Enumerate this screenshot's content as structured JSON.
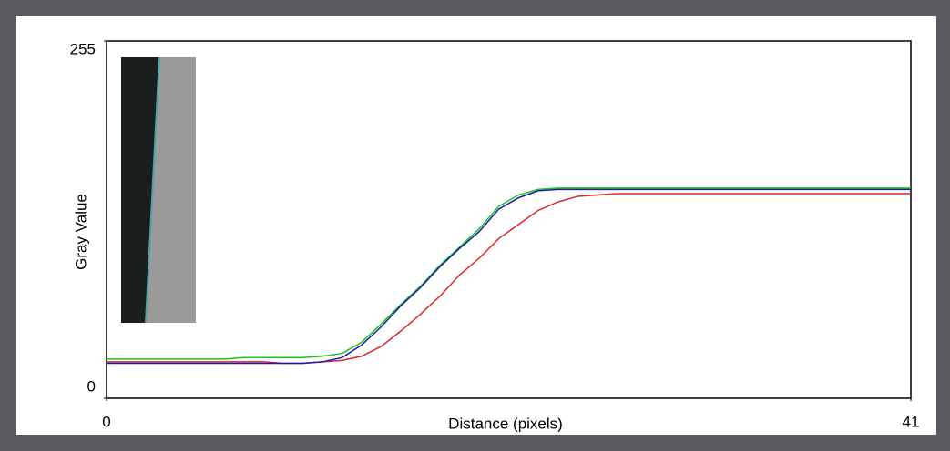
{
  "chart_data": {
    "type": "line",
    "x_label": "Distance (pixels)",
    "y_label": "Gray Value",
    "x": [
      0,
      1,
      2,
      3,
      4,
      5,
      6,
      7,
      8,
      9,
      10,
      11,
      12,
      13,
      14,
      15,
      16,
      17,
      18,
      19,
      20,
      21,
      22,
      23,
      24,
      25,
      26,
      27,
      28,
      29,
      30,
      31,
      32,
      33,
      34,
      35,
      36,
      37,
      38,
      39,
      40,
      41
    ],
    "series": [
      {
        "color": "#e0262a",
        "values": [
          26,
          26,
          26,
          26,
          26,
          26,
          26,
          26,
          26,
          25,
          25,
          26,
          27,
          30,
          37,
          48,
          60,
          73,
          88,
          100,
          114,
          124,
          134,
          140,
          144,
          145,
          146,
          146,
          146,
          146,
          146,
          146,
          146,
          146,
          146,
          146,
          146,
          146,
          146,
          146,
          146,
          146
        ]
      },
      {
        "color": "#1fc21f",
        "values": [
          28,
          28,
          28,
          28,
          28,
          28,
          28,
          29,
          29,
          29,
          29,
          30,
          32,
          40,
          53,
          67,
          80,
          95,
          108,
          121,
          137,
          145,
          149,
          150,
          150,
          150,
          150,
          150,
          150,
          150,
          150,
          150,
          150,
          150,
          150,
          150,
          150,
          150,
          150,
          150,
          150,
          150
        ]
      },
      {
        "color": "#1a1ab0",
        "values": [
          25,
          25,
          25,
          25,
          25,
          25,
          25,
          25,
          25,
          25,
          25,
          26,
          29,
          38,
          51,
          66,
          79,
          94,
          107,
          119,
          135,
          143,
          148,
          149,
          149,
          149,
          149,
          149,
          149,
          149,
          149,
          149,
          149,
          149,
          149,
          149,
          149,
          149,
          149,
          149,
          149,
          149
        ]
      }
    ],
    "xlim": [
      0,
      41
    ],
    "xticks": [
      0,
      41
    ],
    "ylim": [
      0,
      255
    ],
    "yticks": [
      0,
      255
    ]
  }
}
